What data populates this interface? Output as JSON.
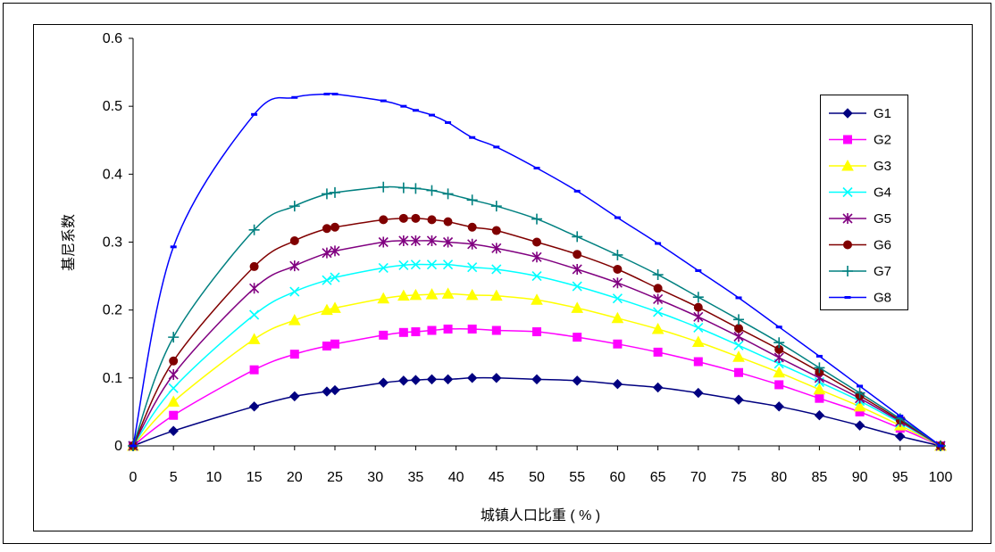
{
  "chart_data": {
    "type": "line",
    "title": "",
    "xlabel": "城镇人口比重 ( % )",
    "ylabel": "基尼系数",
    "xlim": [
      0,
      100
    ],
    "ylim": [
      0,
      0.6
    ],
    "x_ticks": [
      "0",
      "5",
      "10",
      "15",
      "20",
      "25",
      "30",
      "35",
      "40",
      "45",
      "50",
      "55",
      "60",
      "65",
      "70",
      "75",
      "80",
      "85",
      "90",
      "95",
      "100"
    ],
    "y_ticks": [
      "0",
      "0.1",
      "0.2",
      "0.3",
      "0.4",
      "0.5",
      "0.6"
    ],
    "grid": false,
    "legend_position": "right",
    "series": [
      {
        "name": "G1",
        "color": "#000080",
        "marker": "diamond",
        "x": [
          0,
          5,
          15,
          20,
          24,
          25,
          31,
          33.5,
          35,
          37,
          39,
          42,
          45,
          50,
          55,
          60,
          65,
          70,
          75,
          80,
          85,
          90,
          95,
          100
        ],
        "y": [
          0,
          0.022,
          0.058,
          0.073,
          0.08,
          0.082,
          0.093,
          0.096,
          0.097,
          0.098,
          0.098,
          0.1,
          0.1,
          0.098,
          0.096,
          0.091,
          0.086,
          0.078,
          0.068,
          0.058,
          0.045,
          0.03,
          0.014,
          0
        ]
      },
      {
        "name": "G2",
        "color": "#ff00ff",
        "marker": "square",
        "x": [
          0,
          5,
          15,
          20,
          24,
          25,
          31,
          33.5,
          35,
          37,
          39,
          42,
          45,
          50,
          55,
          60,
          65,
          70,
          75,
          80,
          85,
          90,
          95,
          100
        ],
        "y": [
          0,
          0.045,
          0.112,
          0.135,
          0.147,
          0.15,
          0.163,
          0.167,
          0.168,
          0.17,
          0.172,
          0.172,
          0.17,
          0.168,
          0.16,
          0.15,
          0.138,
          0.124,
          0.108,
          0.09,
          0.07,
          0.05,
          0.026,
          0
        ]
      },
      {
        "name": "G3",
        "color": "#ffff00",
        "marker": "triangle",
        "x": [
          0,
          5,
          15,
          20,
          24,
          25,
          31,
          33.5,
          35,
          37,
          39,
          42,
          45,
          50,
          55,
          60,
          65,
          70,
          75,
          80,
          85,
          90,
          95,
          100
        ],
        "y": [
          0,
          0.065,
          0.157,
          0.185,
          0.2,
          0.203,
          0.217,
          0.221,
          0.222,
          0.223,
          0.224,
          0.222,
          0.221,
          0.215,
          0.203,
          0.188,
          0.172,
          0.153,
          0.131,
          0.108,
          0.083,
          0.058,
          0.03,
          0
        ]
      },
      {
        "name": "G4",
        "color": "#00ffff",
        "marker": "x",
        "x": [
          0,
          5,
          15,
          20,
          24,
          25,
          31,
          33.5,
          35,
          37,
          39,
          42,
          45,
          50,
          55,
          60,
          65,
          70,
          75,
          80,
          85,
          90,
          95,
          100
        ],
        "y": [
          0,
          0.085,
          0.193,
          0.227,
          0.244,
          0.248,
          0.262,
          0.266,
          0.267,
          0.267,
          0.267,
          0.263,
          0.26,
          0.25,
          0.235,
          0.217,
          0.197,
          0.174,
          0.148,
          0.121,
          0.094,
          0.066,
          0.034,
          0
        ]
      },
      {
        "name": "G5",
        "color": "#800080",
        "marker": "asterisk",
        "x": [
          0,
          5,
          15,
          20,
          24,
          25,
          31,
          33.5,
          35,
          37,
          39,
          42,
          45,
          50,
          55,
          60,
          65,
          70,
          75,
          80,
          85,
          90,
          95,
          100
        ],
        "y": [
          0,
          0.105,
          0.232,
          0.265,
          0.284,
          0.287,
          0.3,
          0.302,
          0.302,
          0.302,
          0.3,
          0.297,
          0.291,
          0.278,
          0.26,
          0.24,
          0.216,
          0.19,
          0.161,
          0.13,
          0.1,
          0.07,
          0.036,
          0
        ]
      },
      {
        "name": "G6",
        "color": "#800000",
        "marker": "circle",
        "x": [
          0,
          5,
          15,
          20,
          24,
          25,
          31,
          33.5,
          35,
          37,
          39,
          42,
          45,
          50,
          55,
          60,
          65,
          70,
          75,
          80,
          85,
          90,
          95,
          100
        ],
        "y": [
          0,
          0.125,
          0.264,
          0.302,
          0.32,
          0.322,
          0.333,
          0.335,
          0.335,
          0.333,
          0.33,
          0.322,
          0.317,
          0.3,
          0.282,
          0.26,
          0.232,
          0.204,
          0.173,
          0.142,
          0.109,
          0.074,
          0.038,
          0
        ]
      },
      {
        "name": "G7",
        "color": "#008080",
        "marker": "plus",
        "x": [
          0,
          5,
          15,
          20,
          24,
          25,
          31,
          33.5,
          35,
          37,
          39,
          42,
          45,
          50,
          55,
          60,
          65,
          70,
          75,
          80,
          85,
          90,
          95,
          100
        ],
        "y": [
          0,
          0.16,
          0.318,
          0.353,
          0.371,
          0.373,
          0.381,
          0.38,
          0.379,
          0.376,
          0.371,
          0.362,
          0.353,
          0.334,
          0.308,
          0.281,
          0.252,
          0.219,
          0.186,
          0.152,
          0.115,
          0.078,
          0.04,
          0
        ]
      },
      {
        "name": "G8",
        "color": "#0000ff",
        "marker": "dash",
        "x": [
          0,
          5,
          15,
          20,
          24,
          25,
          31,
          33.5,
          35,
          37,
          39,
          42,
          45,
          50,
          55,
          60,
          65,
          70,
          75,
          80,
          85,
          90,
          95,
          100
        ],
        "y": [
          0,
          0.293,
          0.488,
          0.513,
          0.518,
          0.518,
          0.508,
          0.5,
          0.494,
          0.487,
          0.476,
          0.454,
          0.44,
          0.409,
          0.375,
          0.336,
          0.298,
          0.258,
          0.218,
          0.175,
          0.132,
          0.088,
          0.044,
          0
        ]
      }
    ]
  }
}
